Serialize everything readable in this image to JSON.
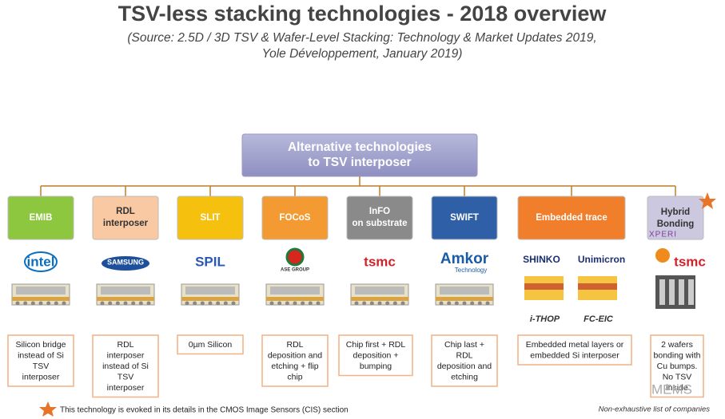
{
  "header": {
    "title": "TSV-less stacking technologies - 2018 overview",
    "source": [
      "(Source: 2.5D / 3D TSV & Wafer-Level Stacking: Technology & Market Updates 2019,",
      "Yole Développement, January 2019)"
    ]
  },
  "root": {
    "label": [
      "Alternative technologies",
      "to TSV interposer"
    ]
  },
  "nodes": [
    {
      "label": [
        "EMIB"
      ],
      "color": "#8dc63f",
      "logos": [
        {
          "text": "intel",
          "color": "#0b6fc0"
        }
      ],
      "description": [
        "Silicon bridge",
        "instead of Si",
        "TSV",
        "interposer"
      ]
    },
    {
      "label": [
        "RDL",
        "interposer"
      ],
      "color": "#f9c9a3",
      "logos": [
        {
          "text": "SAMSUNG",
          "color": "#1d4f9c"
        }
      ],
      "description": [
        "RDL",
        "interposer",
        "instead of Si",
        "TSV",
        "interposer"
      ]
    },
    {
      "label": [
        "SLIT"
      ],
      "color": "#f6c10e",
      "logos": [
        {
          "text": "SPIL",
          "color": "#2a58b0"
        }
      ],
      "description": [
        "0µm Silicon"
      ]
    },
    {
      "label": [
        "FOCoS"
      ],
      "color": "#f39a33",
      "logos": [
        {
          "text": "ASE GROUP",
          "color": "#333333"
        }
      ],
      "description": [
        "RDL",
        "deposition and",
        "etching + flip",
        "chip"
      ]
    },
    {
      "label": [
        "InFO",
        "on substrate"
      ],
      "color": "#8a8a8a",
      "logos": [
        {
          "text": "tsmc",
          "color": "#d2232a"
        }
      ],
      "description": [
        "Chip first + RDL",
        "deposition +",
        "bumping"
      ]
    },
    {
      "label": [
        "SWIFT"
      ],
      "color": "#2f5fa7",
      "logos": [
        {
          "text": "Amkor",
          "color": "#1a5aa6"
        },
        {
          "text": "Technology",
          "color": "#1a5aa6"
        }
      ],
      "description": [
        "Chip last +",
        "RDL",
        "deposition and",
        "etching"
      ]
    },
    {
      "label": [
        "Embedded trace"
      ],
      "color": "#f07e2b",
      "logos": [
        {
          "text": "SHINKO",
          "color": "#1c2f6e"
        },
        {
          "text": "Unimicron",
          "color": "#1c2f6e"
        }
      ],
      "captions": [
        "i-THOP",
        "FC-EIC"
      ],
      "description": [
        "Embedded metal layers or",
        "embedded Si interposer"
      ]
    },
    {
      "label": [
        "Hybrid",
        "Bonding"
      ],
      "color": "#cbc8e0",
      "brand": "XPERI",
      "logos": [
        {
          "text": "tsmc",
          "color": "#d2232a"
        }
      ],
      "description": [
        "2 wafers",
        "bonding with",
        "Cu bumps.",
        "No TSV",
        "inside"
      ]
    }
  ],
  "footnote": "This technology is evoked in its details in the CMOS Image Sensors (CIS) section",
  "note": "Non-exhaustive list of companies",
  "watermark": "MEMS"
}
